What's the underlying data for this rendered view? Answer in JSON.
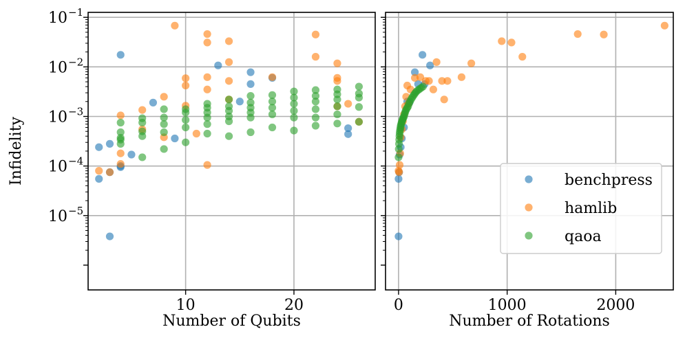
{
  "chart_data": [
    {
      "type": "scatter",
      "xlabel": "Number of Qubits",
      "ylabel": "Infidelity",
      "xlim": [
        1,
        27.5
      ],
      "ylim_log10": [
        -6.5,
        -0.9
      ],
      "x_ticks": [
        10,
        20
      ],
      "y_ticks": [
        {
          "base": "10",
          "exp": "−1",
          "value": -1
        },
        {
          "base": "10",
          "exp": "−2",
          "value": -2
        },
        {
          "base": "10",
          "exp": "−3",
          "value": -3
        },
        {
          "base": "10",
          "exp": "−4",
          "value": -4
        },
        {
          "base": "10",
          "exp": "−5",
          "value": -5
        }
      ],
      "grid": true,
      "series": [
        {
          "name": "benchpress",
          "color": "#1f77b4",
          "points": [
            [
              2,
              0.00024
            ],
            [
              2,
              5.5e-05
            ],
            [
              3,
              0.00028
            ],
            [
              3,
              3.8e-06
            ],
            [
              3,
              7.5e-05
            ],
            [
              4,
              0.0175
            ],
            [
              4,
              0.0001
            ],
            [
              4,
              9.5e-05
            ],
            [
              5,
              0.00017
            ],
            [
              7,
              0.0019
            ],
            [
              9,
              0.00036
            ],
            [
              13,
              0.0107
            ],
            [
              15,
              0.002
            ],
            [
              16,
              0.0078
            ],
            [
              16,
              0.0045
            ],
            [
              18,
              0.006
            ],
            [
              25,
              0.00058
            ],
            [
              25,
              0.00044
            ]
          ]
        },
        {
          "name": "hamlib",
          "color": "#ff7f0e",
          "points": [
            [
              2,
              8e-05
            ],
            [
              3,
              7.5e-05
            ],
            [
              4,
              0.00105
            ],
            [
              4,
              0.00018
            ],
            [
              4,
              0.00011
            ],
            [
              6,
              0.00135
            ],
            [
              6,
              0.00055
            ],
            [
              8,
              0.0025
            ],
            [
              8,
              0.00038
            ],
            [
              9,
              0.068
            ],
            [
              10,
              0.0059
            ],
            [
              10,
              0.0042
            ],
            [
              10,
              0.00165
            ],
            [
              11,
              0.00045
            ],
            [
              12,
              0.046
            ],
            [
              12,
              0.031
            ],
            [
              12,
              0.0062
            ],
            [
              12,
              0.0035
            ],
            [
              12,
              0.000105
            ],
            [
              14,
              0.033
            ],
            [
              14,
              0.0125
            ],
            [
              14,
              0.0052
            ],
            [
              14,
              0.0022
            ],
            [
              18,
              0.0062
            ],
            [
              22,
              0.045
            ],
            [
              22,
              0.016
            ],
            [
              24,
              0.0118
            ],
            [
              24,
              0.006
            ],
            [
              24,
              0.0052
            ],
            [
              24,
              0.0016
            ],
            [
              25,
              0.0018
            ],
            [
              26,
              0.00078
            ]
          ]
        },
        {
          "name": "qaoa",
          "color": "#2ca02c",
          "points": [
            [
              4,
              0.00075
            ],
            [
              4,
              0.00048
            ],
            [
              4,
              0.00037
            ],
            [
              4,
              0.00034
            ],
            [
              4,
              0.00028
            ],
            [
              6,
              0.00092
            ],
            [
              6,
              0.00075
            ],
            [
              6,
              0.0005
            ],
            [
              6,
              0.0004
            ],
            [
              6,
              0.00015
            ],
            [
              8,
              0.0014
            ],
            [
              8,
              0.00095
            ],
            [
              8,
              0.0007
            ],
            [
              8,
              0.00048
            ],
            [
              8,
              0.00022
            ],
            [
              10,
              0.0014
            ],
            [
              10,
              0.0012
            ],
            [
              10,
              0.00085
            ],
            [
              10,
              0.0006
            ],
            [
              10,
              0.0003
            ],
            [
              12,
              0.0018
            ],
            [
              12,
              0.0015
            ],
            [
              12,
              0.0012
            ],
            [
              12,
              0.00095
            ],
            [
              12,
              0.0007
            ],
            [
              12,
              0.00045
            ],
            [
              14,
              0.0022
            ],
            [
              14,
              0.0016
            ],
            [
              14,
              0.0013
            ],
            [
              14,
              0.001
            ],
            [
              14,
              0.0008
            ],
            [
              14,
              0.0004
            ],
            [
              16,
              0.0026
            ],
            [
              16,
              0.0019
            ],
            [
              16,
              0.0015
            ],
            [
              16,
              0.0012
            ],
            [
              16,
              0.00095
            ],
            [
              16,
              0.00048
            ],
            [
              18,
              0.0027
            ],
            [
              18,
              0.002
            ],
            [
              18,
              0.0015
            ],
            [
              18,
              0.0011
            ],
            [
              18,
              0.0006
            ],
            [
              20,
              0.0032
            ],
            [
              20,
              0.0024
            ],
            [
              20,
              0.0018
            ],
            [
              20,
              0.0013
            ],
            [
              20,
              0.00095
            ],
            [
              20,
              0.00052
            ],
            [
              22,
              0.0034
            ],
            [
              22,
              0.0026
            ],
            [
              22,
              0.002
            ],
            [
              22,
              0.0014
            ],
            [
              22,
              0.00095
            ],
            [
              22,
              0.00065
            ],
            [
              24,
              0.0035
            ],
            [
              24,
              0.0028
            ],
            [
              24,
              0.0022
            ],
            [
              24,
              0.0016
            ],
            [
              24,
              0.0011
            ],
            [
              24,
              0.00072
            ],
            [
              26,
              0.004
            ],
            [
              26,
              0.0029
            ],
            [
              26,
              0.0024
            ],
            [
              26,
              0.00155
            ],
            [
              26,
              0.00078
            ]
          ]
        }
      ]
    },
    {
      "type": "scatter",
      "xlabel": "Number of Rotations",
      "ylabel": "",
      "xlim": [
        -120,
        2530
      ],
      "ylim_log10": [
        -6.5,
        -0.9
      ],
      "x_ticks": [
        0,
        1000,
        2000
      ],
      "grid": true,
      "legend_position": "lower-right",
      "series": [
        {
          "name": "benchpress",
          "color": "#1f77b4",
          "points": [
            [
              0,
              3.8e-06
            ],
            [
              0,
              5.5e-05
            ],
            [
              5,
              7.5e-05
            ],
            [
              10,
              0.00017
            ],
            [
              20,
              0.00024
            ],
            [
              30,
              0.00036
            ],
            [
              50,
              0.0006
            ],
            [
              80,
              0.002
            ],
            [
              100,
              0.0019
            ],
            [
              150,
              0.0078
            ],
            [
              180,
              0.0045
            ],
            [
              220,
              0.0175
            ],
            [
              240,
              0.0045
            ],
            [
              290,
              0.0107
            ]
          ]
        },
        {
          "name": "hamlib",
          "color": "#ff7f0e",
          "points": [
            [
              0,
              8e-05
            ],
            [
              5,
              7.5e-05
            ],
            [
              10,
              0.000105
            ],
            [
              15,
              0.00018
            ],
            [
              20,
              0.00038
            ],
            [
              30,
              0.00055
            ],
            [
              40,
              0.0008
            ],
            [
              50,
              0.0011
            ],
            [
              60,
              0.0016
            ],
            [
              70,
              0.0025
            ],
            [
              80,
              0.0042
            ],
            [
              90,
              0.0018
            ],
            [
              110,
              0.0035
            ],
            [
              150,
              0.006
            ],
            [
              200,
              0.0062
            ],
            [
              250,
              0.0052
            ],
            [
              280,
              0.0052
            ],
            [
              320,
              0.0035
            ],
            [
              350,
              0.0125
            ],
            [
              400,
              0.0052
            ],
            [
              420,
              0.0022
            ],
            [
              450,
              0.0052
            ],
            [
              580,
              0.0062
            ],
            [
              670,
              0.0118
            ],
            [
              950,
              0.033
            ],
            [
              1040,
              0.031
            ],
            [
              1140,
              0.016
            ],
            [
              1650,
              0.046
            ],
            [
              1890,
              0.045
            ],
            [
              2450,
              0.068
            ]
          ]
        },
        {
          "name": "qaoa",
          "color": "#2ca02c",
          "points": [
            [
              0,
              0.00015
            ],
            [
              2,
              0.00022
            ],
            [
              4,
              0.00028
            ],
            [
              6,
              0.00034
            ],
            [
              8,
              0.0004
            ],
            [
              10,
              0.00045
            ],
            [
              12,
              0.0005
            ],
            [
              15,
              0.00055
            ],
            [
              18,
              0.0006
            ],
            [
              20,
              0.00065
            ],
            [
              24,
              0.0007
            ],
            [
              28,
              0.00075
            ],
            [
              32,
              0.0008
            ],
            [
              36,
              0.00085
            ],
            [
              40,
              0.0009
            ],
            [
              45,
              0.00095
            ],
            [
              50,
              0.001
            ],
            [
              55,
              0.0011
            ],
            [
              60,
              0.0012
            ],
            [
              65,
              0.0013
            ],
            [
              72,
              0.0014
            ],
            [
              80,
              0.0015
            ],
            [
              88,
              0.0016
            ],
            [
              95,
              0.0018
            ],
            [
              105,
              0.002
            ],
            [
              115,
              0.0022
            ],
            [
              125,
              0.0024
            ],
            [
              135,
              0.0026
            ],
            [
              145,
              0.0028
            ],
            [
              155,
              0.003
            ],
            [
              165,
              0.0032
            ],
            [
              180,
              0.0034
            ],
            [
              195,
              0.0036
            ],
            [
              210,
              0.0038
            ],
            [
              225,
              0.004
            ]
          ]
        }
      ]
    }
  ]
}
